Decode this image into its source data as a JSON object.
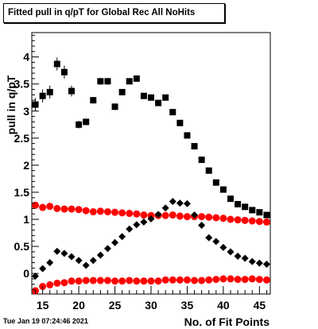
{
  "chart_data": {
    "type": "scatter",
    "title": "Fitted pull in q/pT for Global Rec All NoHits",
    "xlabel": "No. of Fit Points",
    "ylabel": "pull in q/pT",
    "xlim": [
      13.5,
      46.5
    ],
    "ylim": [
      -0.38,
      4.45
    ],
    "x_ticks": [
      15,
      20,
      25,
      30,
      35,
      40,
      45
    ],
    "y_ticks": [
      0,
      0.5,
      1,
      1.5,
      2,
      2.5,
      3,
      3.5,
      4
    ],
    "grid": false,
    "legend": "none",
    "series": [
      {
        "marker": "square",
        "color": "#000000",
        "x": [
          14,
          15,
          16,
          17,
          18,
          19,
          20,
          21,
          22,
          23,
          24,
          25,
          26,
          27,
          28,
          29,
          30,
          31,
          32,
          33,
          34,
          35,
          36,
          37,
          38,
          39,
          40,
          41,
          42,
          43,
          44,
          45,
          46
        ],
        "y": [
          3.12,
          3.28,
          3.35,
          3.87,
          3.72,
          3.37,
          2.75,
          2.8,
          3.2,
          3.55,
          3.55,
          3.08,
          3.35,
          3.55,
          3.6,
          3.28,
          3.25,
          3.15,
          3.25,
          2.98,
          2.78,
          2.55,
          2.35,
          2.1,
          1.9,
          1.68,
          1.55,
          1.38,
          1.28,
          1.23,
          1.17,
          1.13,
          1.08
        ],
        "yerr": [
          0.12,
          0.12,
          0.12,
          0.12,
          0.12,
          0.1,
          0.07,
          0.06,
          0.06,
          0.06,
          0.06,
          0.06,
          0.05,
          0.05,
          0.05,
          0.04,
          0.04,
          0.04,
          0.04,
          0.03,
          0.03,
          0.03,
          0.03,
          0.02,
          0.02,
          0.02,
          0.02,
          0.02,
          0.02,
          0.02,
          0.02,
          0.02,
          0.02
        ]
      },
      {
        "marker": "circle",
        "color": "#ff0000",
        "x": [
          14,
          15,
          16,
          17,
          18,
          19,
          20,
          21,
          22,
          23,
          24,
          25,
          26,
          27,
          28,
          29,
          30,
          31,
          32,
          33,
          34,
          35,
          36,
          37,
          38,
          39,
          40,
          41,
          42,
          43,
          44,
          45,
          46
        ],
        "y": [
          1.26,
          1.22,
          1.24,
          1.2,
          1.19,
          1.19,
          1.18,
          1.16,
          1.14,
          1.15,
          1.14,
          1.13,
          1.12,
          1.11,
          1.1,
          1.08,
          1.07,
          1.07,
          1.07,
          1.08,
          1.06,
          1.05,
          1.05,
          1.05,
          1.04,
          1.03,
          1.02,
          1.0,
          0.99,
          0.98,
          0.97,
          0.96,
          0.95
        ]
      },
      {
        "marker": "diamond",
        "color": "#000000",
        "x": [
          14,
          15,
          16,
          17,
          18,
          19,
          20,
          21,
          22,
          23,
          24,
          25,
          26,
          27,
          28,
          29,
          30,
          31,
          32,
          33,
          34,
          35,
          36,
          37,
          38,
          39,
          40,
          41,
          42,
          43,
          44,
          45,
          46
        ],
        "y": [
          -0.05,
          0.09,
          0.2,
          0.41,
          0.37,
          0.31,
          0.24,
          0.15,
          0.24,
          0.34,
          0.46,
          0.57,
          0.68,
          0.82,
          0.9,
          0.95,
          1.01,
          1.09,
          1.21,
          1.33,
          1.3,
          1.29,
          1.08,
          0.89,
          0.66,
          0.59,
          0.48,
          0.4,
          0.32,
          0.28,
          0.22,
          0.19,
          0.17
        ],
        "yerr": [
          0.03,
          0.03,
          0.03,
          0.05,
          0.05,
          0.05,
          0.04,
          0.03,
          0.03,
          0.03,
          0.03,
          0.03,
          0.02,
          0.02,
          0.02,
          0.02,
          0.02,
          0.02,
          0.02,
          0.02,
          0.02,
          0.02,
          0.02,
          0.02,
          0.02,
          0.02,
          0.02,
          0.01,
          0.01,
          0.01,
          0.01,
          0.01,
          0.01
        ]
      },
      {
        "marker": "circle",
        "color": "#ff0000",
        "x": [
          14,
          15,
          16,
          17,
          18,
          19,
          20,
          21,
          22,
          23,
          24,
          25,
          26,
          27,
          28,
          29,
          30,
          31,
          32,
          33,
          34,
          35,
          36,
          37,
          38,
          39,
          40,
          41,
          42,
          43,
          44,
          45,
          46
        ],
        "y": [
          -0.32,
          -0.24,
          -0.21,
          -0.18,
          -0.17,
          -0.14,
          -0.14,
          -0.13,
          -0.13,
          -0.13,
          -0.13,
          -0.14,
          -0.14,
          -0.13,
          -0.14,
          -0.14,
          -0.14,
          -0.14,
          -0.12,
          -0.12,
          -0.12,
          -0.12,
          -0.13,
          -0.13,
          -0.12,
          -0.11,
          -0.1,
          -0.1,
          -0.11,
          -0.11,
          -0.1,
          -0.11,
          -0.12
        ]
      }
    ]
  },
  "timestamp": "Tue Jan 19 07:24:46 2021"
}
